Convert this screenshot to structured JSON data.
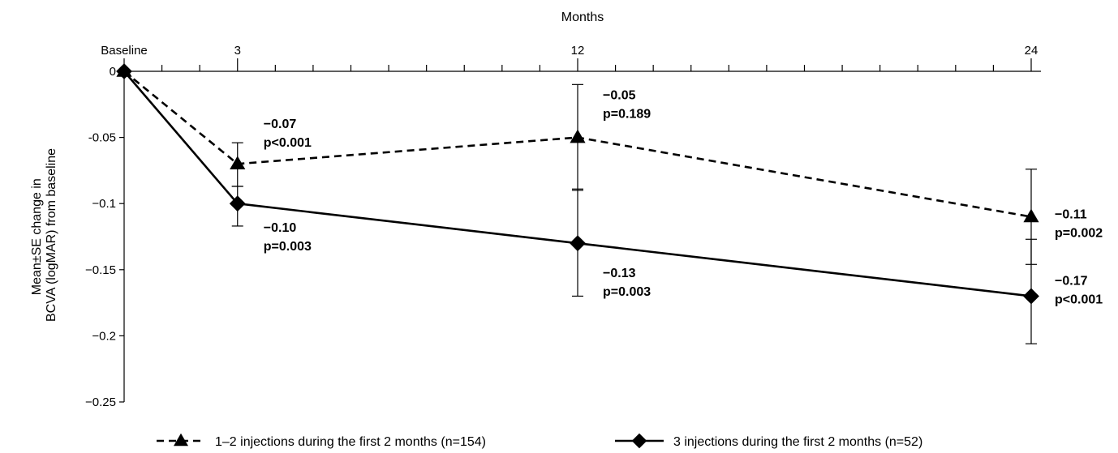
{
  "chart_data": {
    "type": "line",
    "xlabel": "Months",
    "ylabel_line1": "Mean±SE change in",
    "ylabel_line2": "BCVA (logMAR) from baseline",
    "x_range": [
      0,
      24
    ],
    "y_range": [
      -0.25,
      0
    ],
    "x_tick_labels": [
      {
        "x": 0,
        "label": "Baseline"
      },
      {
        "x": 3,
        "label": "3"
      },
      {
        "x": 12,
        "label": "12"
      },
      {
        "x": 24,
        "label": "24"
      }
    ],
    "x_minor_ticks": [
      1,
      2,
      4,
      5,
      6,
      7,
      8,
      9,
      10,
      11,
      13,
      14,
      15,
      16,
      17,
      18,
      19,
      20,
      21,
      22,
      23
    ],
    "y_ticks": [
      {
        "y": 0,
        "label": "0"
      },
      {
        "y": -0.05,
        "label": "-0.05"
      },
      {
        "y": -0.1,
        "label": "−0.1"
      },
      {
        "y": -0.15,
        "label": "−0.15"
      },
      {
        "y": -0.2,
        "label": "−0.2"
      },
      {
        "y": -0.25,
        "label": "−0.25"
      }
    ],
    "grid": false,
    "legend_position": "bottom",
    "series": [
      {
        "name": "1–2 injections during the first 2 months (n=154)",
        "line_style": "dashed",
        "marker": "triangle",
        "color": "#000000",
        "points": [
          {
            "x": 0,
            "y": 0,
            "err_low": 0,
            "err_high": 0
          },
          {
            "x": 3,
            "y": -0.07,
            "err_low": -0.087,
            "err_high": -0.054
          },
          {
            "x": 12,
            "y": -0.05,
            "err_low": -0.09,
            "err_high": -0.01
          },
          {
            "x": 24,
            "y": -0.11,
            "err_low": -0.146,
            "err_high": -0.074
          }
        ],
        "annotations": [
          {
            "x": 3,
            "value": "−0.07",
            "p": "p<0.001"
          },
          {
            "x": 12,
            "value": "−0.05",
            "p": "p=0.189"
          },
          {
            "x": 24,
            "value": "−0.11",
            "p": "p=0.002"
          }
        ]
      },
      {
        "name": "3 injections during the first 2 months (n=52)",
        "line_style": "solid",
        "marker": "diamond",
        "color": "#000000",
        "points": [
          {
            "x": 0,
            "y": 0,
            "err_low": 0,
            "err_high": 0
          },
          {
            "x": 3,
            "y": -0.1,
            "err_low": -0.117,
            "err_high": -0.087
          },
          {
            "x": 12,
            "y": -0.13,
            "err_low": -0.17,
            "err_high": -0.089
          },
          {
            "x": 24,
            "y": -0.17,
            "err_low": -0.206,
            "err_high": -0.127
          }
        ],
        "annotations": [
          {
            "x": 3,
            "value": "−0.10",
            "p": "p=0.003"
          },
          {
            "x": 12,
            "value": "−0.13",
            "p": "p=0.003"
          },
          {
            "x": 24,
            "value": "−0.17",
            "p": "p<0.001"
          }
        ]
      }
    ]
  }
}
